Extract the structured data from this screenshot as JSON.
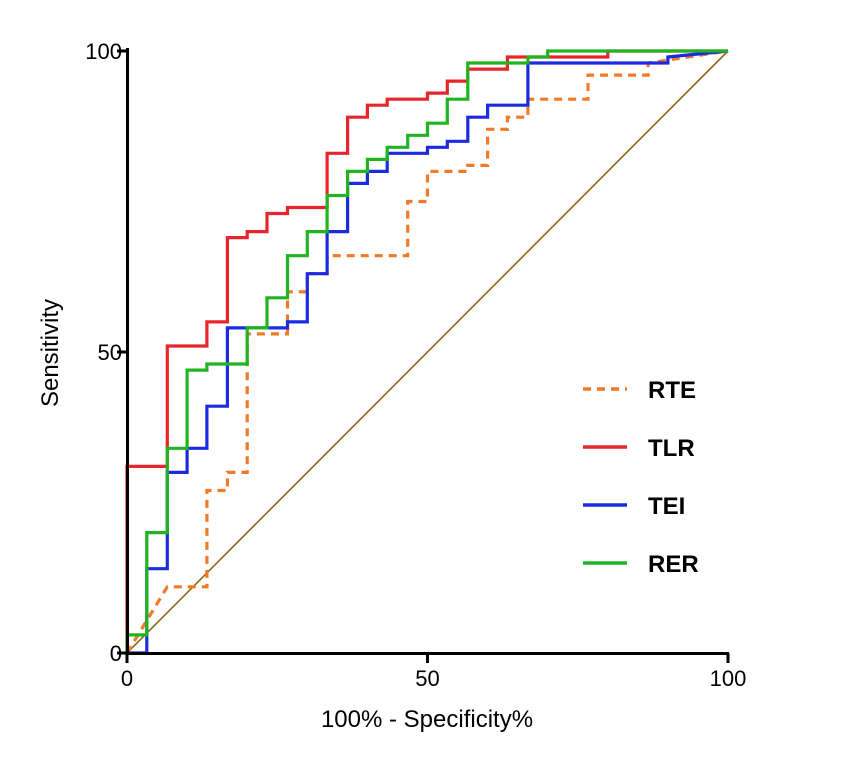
{
  "chart_data": {
    "type": "line",
    "title": "",
    "xlabel": "100% - Specificity%",
    "ylabel": "Sensitivity",
    "xlim": [
      0,
      100
    ],
    "ylim": [
      0,
      100
    ],
    "x_ticks": [
      "0",
      "50",
      "100"
    ],
    "y_ticks": [
      "0",
      "50",
      "100"
    ],
    "grid": false,
    "legend_position": "bottom-right",
    "reference_line": {
      "x": [
        0,
        100
      ],
      "y": [
        0,
        100
      ],
      "color": "#8b6914"
    },
    "series": [
      {
        "name": "RTE",
        "color": "#f07a28",
        "style": "dashed",
        "x": [
          0,
          6.7,
          6.7,
          13.3,
          13.3,
          16.7,
          16.7,
          20,
          20,
          26.7,
          26.7,
          30,
          30,
          33.3,
          33.3,
          36.7,
          36.7,
          46.7,
          46.7,
          50,
          50,
          56.7,
          56.7,
          60,
          60,
          63.3,
          63.3,
          66.7,
          66.7,
          76.7,
          76.7,
          86.7,
          86.7,
          100
        ],
        "y": [
          0,
          11,
          11,
          11,
          27,
          27,
          30,
          30,
          53,
          53,
          60,
          60,
          63,
          63,
          66,
          66,
          66,
          66,
          75,
          75,
          80,
          80,
          81,
          81,
          87,
          87,
          89,
          89,
          92,
          92,
          96,
          96,
          98,
          100
        ]
      },
      {
        "name": "TLR",
        "color": "#e8262a",
        "style": "solid",
        "x": [
          0,
          0,
          6.7,
          6.7,
          13.3,
          13.3,
          16.7,
          16.7,
          20,
          20,
          23.3,
          23.3,
          26.7,
          26.7,
          33.3,
          33.3,
          36.7,
          36.7,
          40,
          40,
          43.3,
          43.3,
          50,
          50,
          53.3,
          53.3,
          56.7,
          56.7,
          63.3,
          63.3,
          66.7,
          66.7,
          80,
          80,
          100
        ],
        "y": [
          0,
          31,
          31,
          51,
          51,
          55,
          55,
          69,
          69,
          70,
          70,
          73,
          73,
          74,
          74,
          83,
          83,
          89,
          89,
          91,
          91,
          92,
          92,
          93,
          93,
          95,
          95,
          97,
          97,
          99,
          99,
          99,
          99,
          100,
          100
        ]
      },
      {
        "name": "TEI",
        "color": "#1c2be0",
        "style": "solid",
        "x": [
          0,
          3.3,
          3.3,
          6.7,
          6.7,
          10,
          10,
          13.3,
          13.3,
          16.7,
          16.7,
          20,
          20,
          26.7,
          26.7,
          30,
          30,
          33.3,
          33.3,
          36.7,
          36.7,
          40,
          40,
          43.3,
          43.3,
          50,
          50,
          53.3,
          53.3,
          56.7,
          56.7,
          60,
          60,
          66.7,
          66.7,
          83.3,
          83.3,
          90,
          90,
          100
        ],
        "y": [
          0,
          0,
          14,
          14,
          30,
          30,
          34,
          34,
          41,
          41,
          54,
          54,
          54,
          54,
          55,
          55,
          63,
          63,
          70,
          70,
          78,
          78,
          80,
          80,
          83,
          83,
          84,
          84,
          85,
          85,
          89,
          89,
          91,
          91,
          98,
          98,
          98,
          98,
          99,
          100
        ]
      },
      {
        "name": "RER",
        "color": "#20b520",
        "style": "solid",
        "x": [
          0,
          0,
          3.3,
          3.3,
          6.7,
          6.7,
          10,
          10,
          13.3,
          13.3,
          20,
          20,
          23.3,
          23.3,
          26.7,
          26.7,
          30,
          30,
          33.3,
          33.3,
          36.7,
          36.7,
          40,
          40,
          43.3,
          43.3,
          46.7,
          46.7,
          50,
          50,
          53.3,
          53.3,
          56.7,
          56.7,
          66.7,
          66.7,
          70,
          70,
          100
        ],
        "y": [
          0,
          3,
          3,
          20,
          20,
          34,
          34,
          47,
          47,
          48,
          48,
          54,
          54,
          59,
          59,
          66,
          66,
          70,
          70,
          76,
          76,
          80,
          80,
          82,
          82,
          84,
          84,
          86,
          86,
          88,
          88,
          92,
          92,
          98,
          98,
          99,
          99,
          100,
          100
        ]
      }
    ]
  }
}
